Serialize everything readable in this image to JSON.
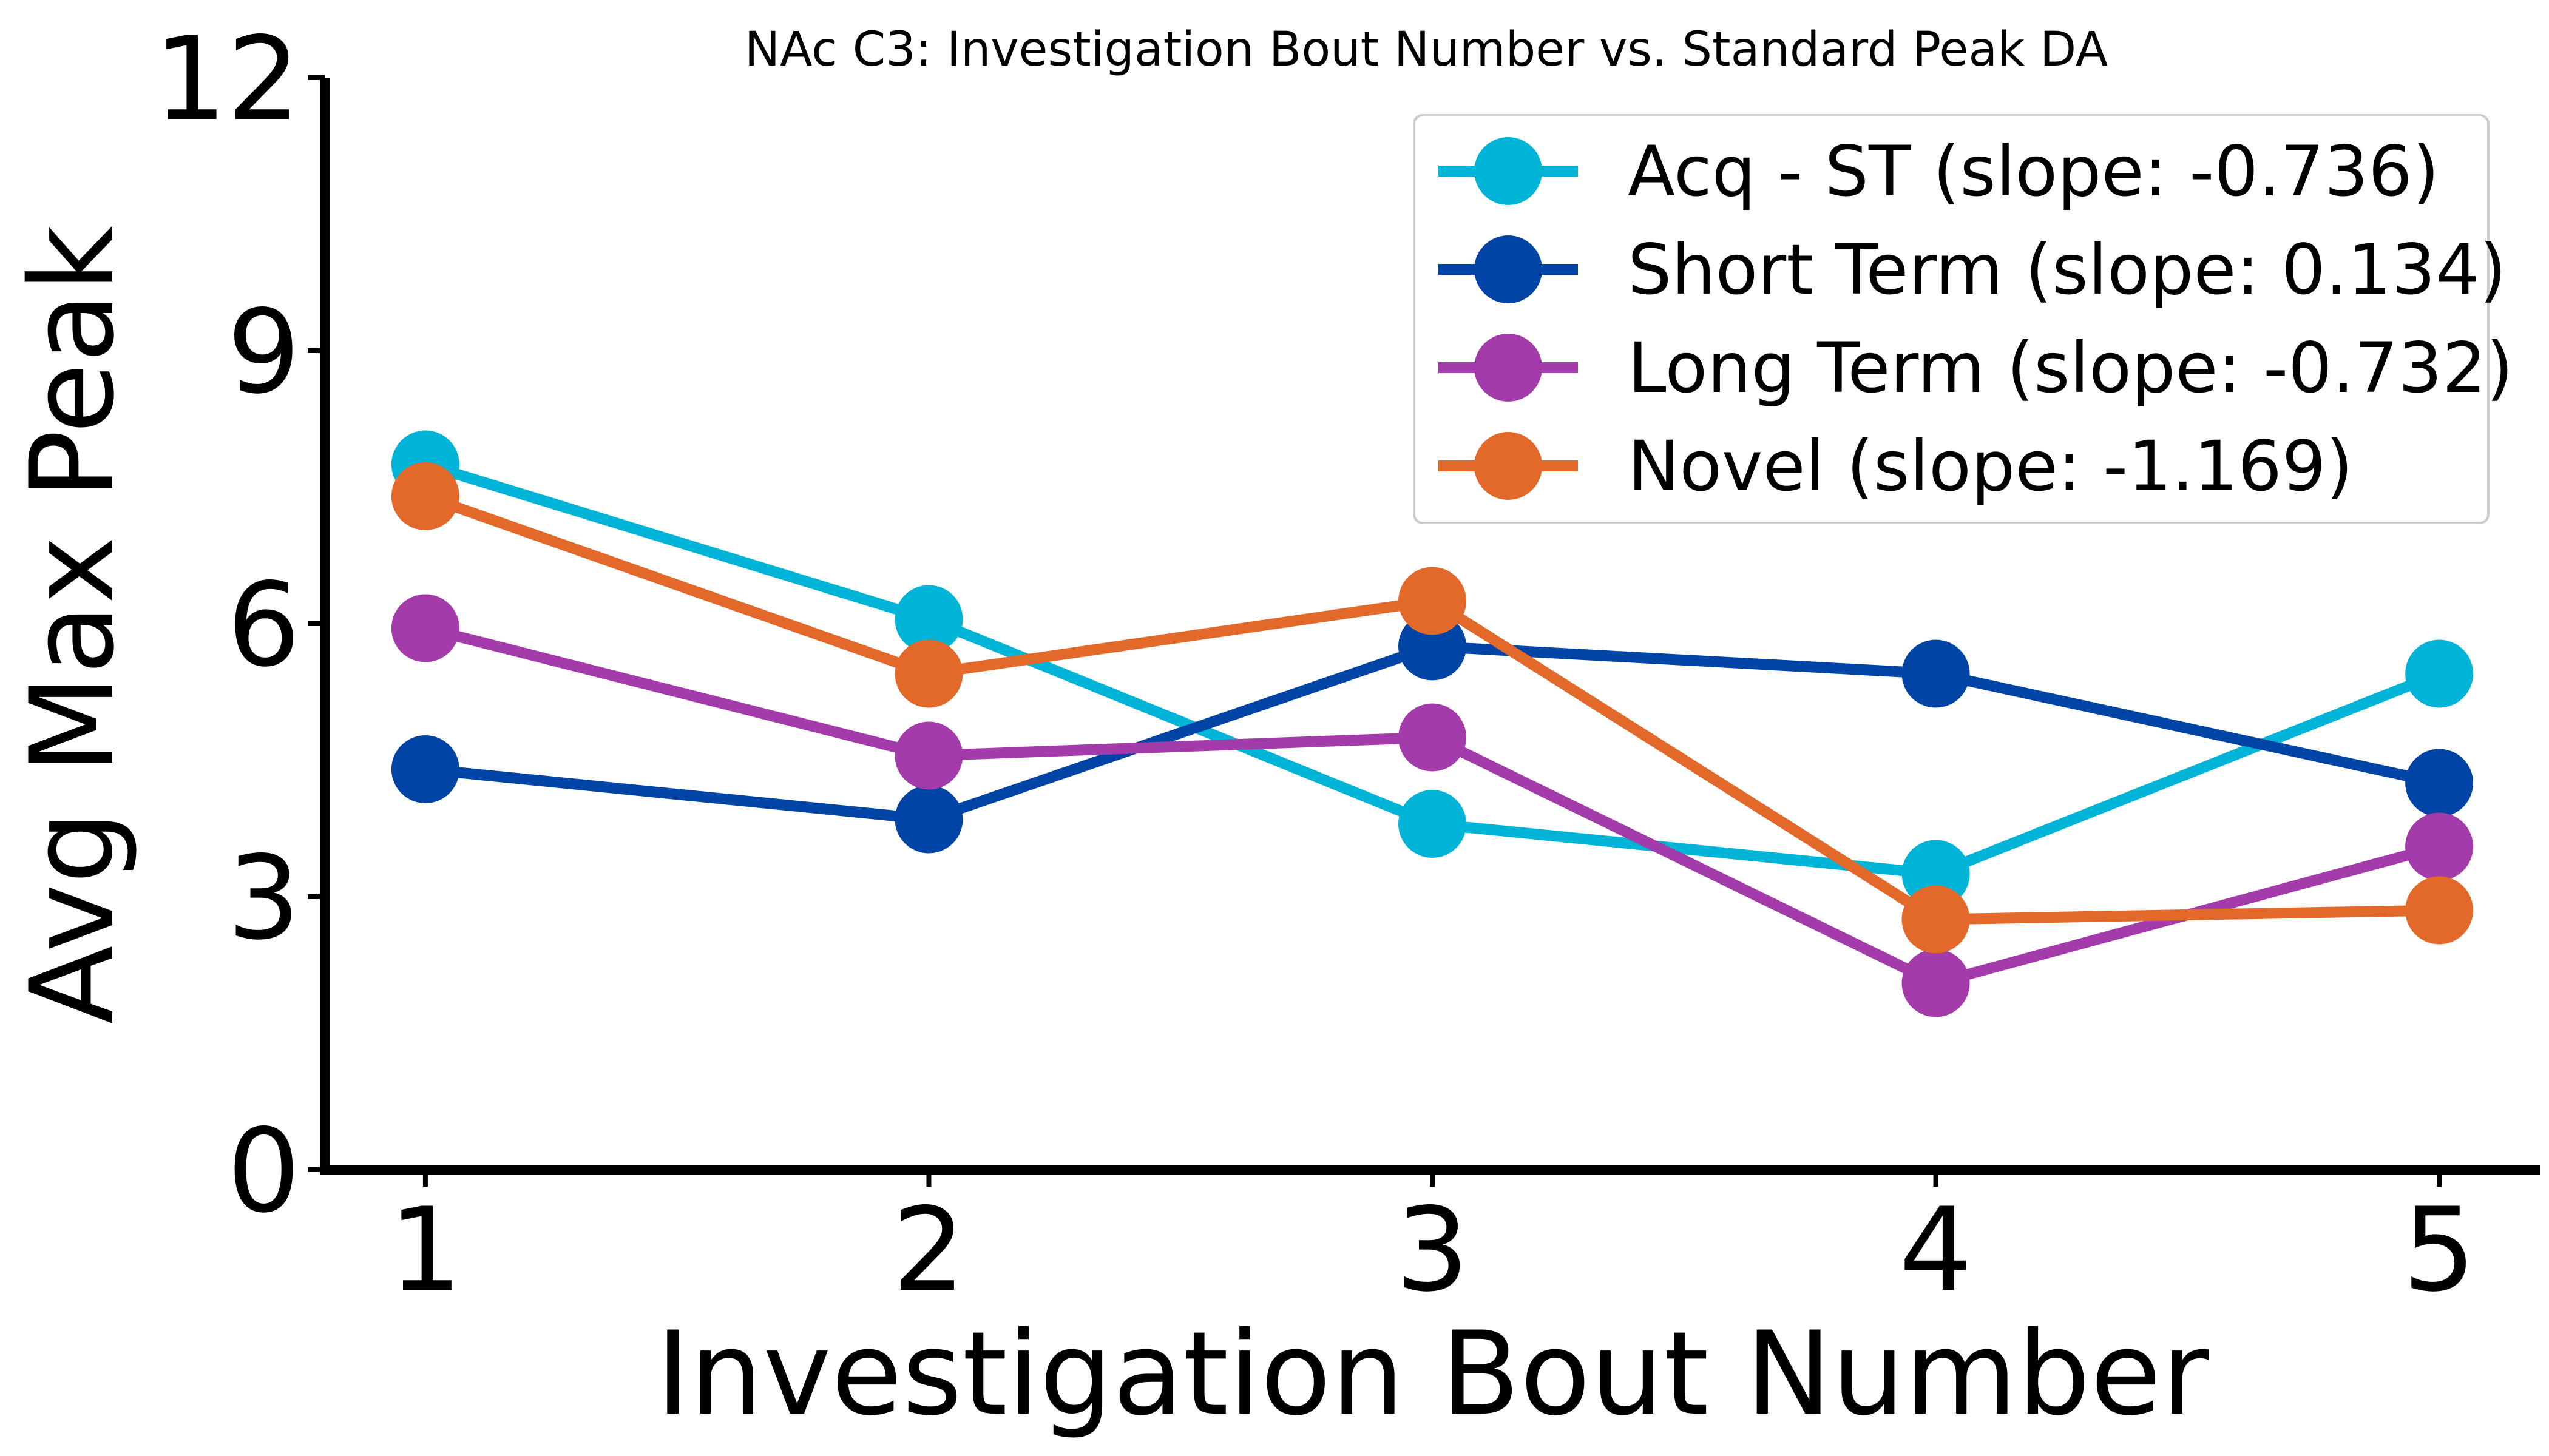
{
  "chart_data": {
    "type": "line",
    "title": "NAc C3: Investigation Bout Number vs. Standard Peak DA",
    "xlabel": "Investigation Bout Number",
    "ylabel": "Avg Max Peak",
    "x": [
      1,
      2,
      3,
      4,
      5
    ],
    "x_tick_labels": [
      "1",
      "2",
      "3",
      "4",
      "5"
    ],
    "y_ticks": [
      0,
      3,
      6,
      9,
      12
    ],
    "y_tick_labels": [
      "0",
      "3",
      "6",
      "9",
      "12"
    ],
    "xlim": [
      0.8,
      5.2
    ],
    "ylim": [
      0,
      12
    ],
    "grid": false,
    "legend_position": "top-right",
    "series": [
      {
        "name": "Acq - ST (slope: -0.736)",
        "color": "#00B4D8",
        "values": [
          7.75,
          6.05,
          3.8,
          3.25,
          5.45
        ]
      },
      {
        "name": "Short Term (slope: 0.134)",
        "color": "#0044A6",
        "values": [
          4.4,
          3.85,
          5.75,
          5.45,
          4.25
        ]
      },
      {
        "name": "Long Term (slope: -0.732)",
        "color": "#A43BAB",
        "values": [
          5.95,
          4.55,
          4.75,
          2.05,
          3.55
        ]
      },
      {
        "name": "Novel (slope: -1.169)",
        "color": "#E2692A",
        "values": [
          7.4,
          5.45,
          6.25,
          2.75,
          2.85
        ]
      }
    ]
  }
}
